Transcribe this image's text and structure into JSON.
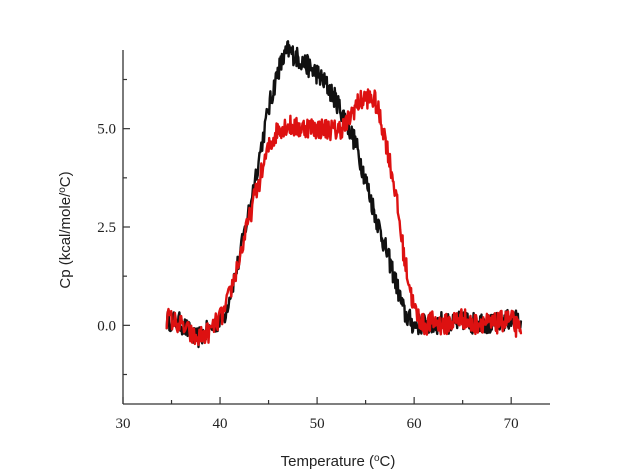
{
  "chart_data": {
    "type": "line",
    "title": "",
    "xlabel": {
      "prefix": "Temperature (",
      "sup": "o",
      "suffix": "C)"
    },
    "ylabel": {
      "prefix": "Cp (kcal/mole/",
      "sup": "o",
      "suffix": "C)"
    },
    "xlim": [
      30,
      74
    ],
    "ylim": [
      -2.0,
      7.0
    ],
    "x_ticks": [
      30,
      40,
      50,
      60,
      70
    ],
    "x_tick_labels": [
      "30",
      "40",
      "50",
      "60",
      "70"
    ],
    "y_ticks": [
      0.0,
      2.5,
      5.0
    ],
    "y_tick_labels": [
      "0.0",
      "2.5",
      "5.0"
    ],
    "grid": false,
    "legend": "none",
    "series": [
      {
        "color": "#111111",
        "x": [
          34.5,
          36,
          37.5,
          39,
          40.5,
          42,
          43.5,
          45,
          46,
          47,
          48,
          49,
          50,
          51,
          52,
          53,
          54,
          55,
          56,
          57,
          58,
          59,
          60,
          61,
          62,
          63,
          64,
          65,
          66,
          67,
          68,
          69,
          70,
          71
        ],
        "y": [
          0.15,
          0.05,
          -0.35,
          -0.1,
          0.3,
          1.7,
          3.6,
          5.5,
          6.5,
          7.0,
          6.8,
          6.6,
          6.4,
          6.1,
          5.7,
          5.2,
          4.6,
          3.7,
          2.8,
          2.0,
          1.2,
          0.3,
          0.0,
          0.05,
          0.0,
          0.1,
          0.0,
          0.15,
          0.05,
          0.1,
          0.0,
          0.1,
          0.15,
          0.1
        ]
      },
      {
        "color": "#dd1111",
        "x": [
          34.5,
          36,
          37.5,
          39,
          40.5,
          42,
          43.5,
          45,
          46,
          47,
          48,
          49,
          50,
          51,
          52,
          53,
          54,
          55,
          56,
          57,
          58,
          59,
          60,
          61,
          62,
          63,
          64,
          65,
          66,
          67,
          68,
          69,
          70,
          71
        ],
        "y": [
          0.2,
          0.0,
          -0.35,
          -0.15,
          0.35,
          1.7,
          3.2,
          4.5,
          5.0,
          5.1,
          5.0,
          5.05,
          5.0,
          5.0,
          4.95,
          5.1,
          5.6,
          5.8,
          5.7,
          4.8,
          3.5,
          1.7,
          0.4,
          0.0,
          0.1,
          0.0,
          0.1,
          0.2,
          0.0,
          0.1,
          0.0,
          0.1,
          0.15,
          -0.2
        ]
      }
    ]
  }
}
